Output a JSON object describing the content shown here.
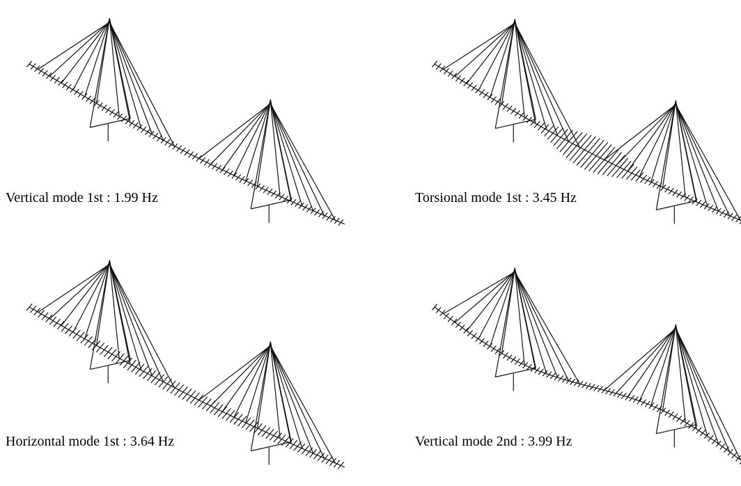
{
  "panels": [
    {
      "label": "Vertical mode 1st : 1.99 Hz"
    },
    {
      "label": "Torsional mode 1st : 3.45 Hz"
    },
    {
      "label": "Horizontal mode 1st : 3.64 Hz"
    },
    {
      "label": "Vertical mode 2nd : 3.99 Hz"
    }
  ]
}
